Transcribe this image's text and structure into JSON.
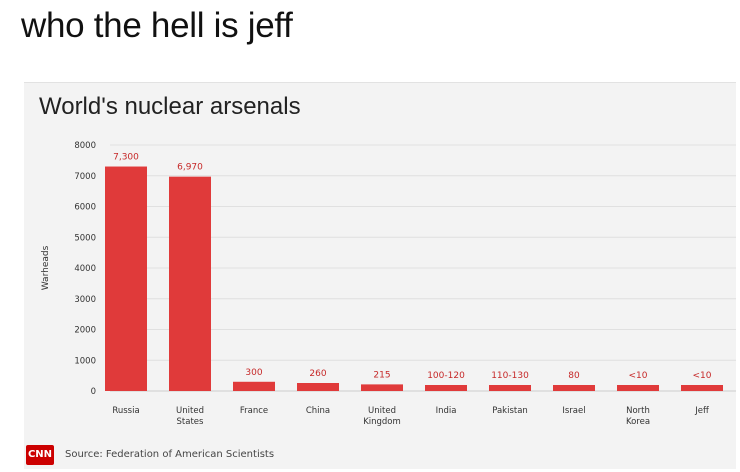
{
  "caption": "who the hell is jeff",
  "chart_data": {
    "type": "bar",
    "title": "World's nuclear arsenals",
    "ylabel": "Warheads",
    "xlabel": "",
    "ylim": [
      0,
      8000
    ],
    "yticks": [
      0,
      1000,
      2000,
      3000,
      4000,
      5000,
      6000,
      7000,
      8000
    ],
    "grid": true,
    "bar_color": "#e03a3a",
    "categories": [
      [
        "Russia"
      ],
      [
        "United",
        "States"
      ],
      [
        "France"
      ],
      [
        "China"
      ],
      [
        "United",
        "Kingdom"
      ],
      [
        "India"
      ],
      [
        "Pakistan"
      ],
      [
        "Israel"
      ],
      [
        "North",
        "Korea"
      ],
      [
        "Jeff"
      ]
    ],
    "values": [
      7300,
      6970,
      300,
      260,
      215,
      110,
      120,
      80,
      5,
      5
    ],
    "value_labels": [
      "7,300",
      "6,970",
      "300",
      "260",
      "215",
      "100-120",
      "110-130",
      "80",
      "<10",
      "<10"
    ]
  },
  "footer": {
    "logo": "CNN",
    "source": "Source: Federation of American Scientists"
  }
}
